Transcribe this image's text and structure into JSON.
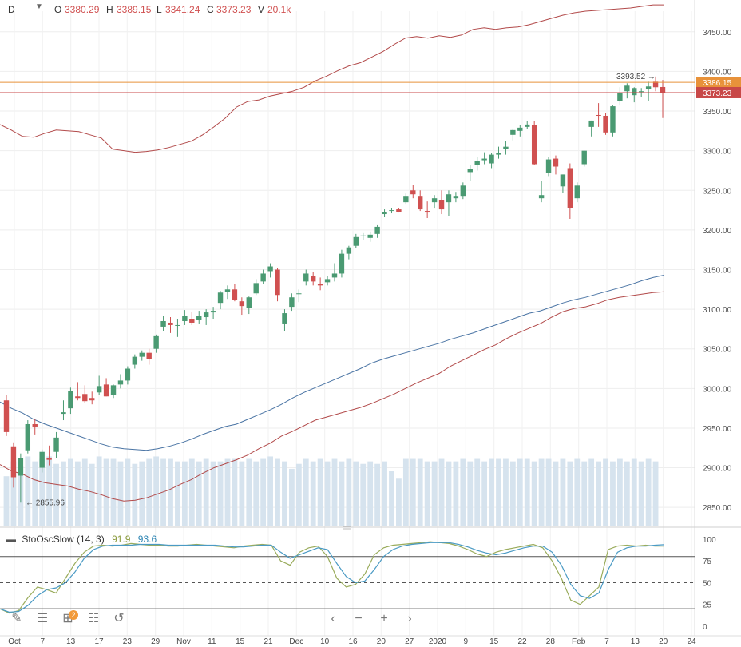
{
  "header": {
    "interval": "D",
    "o_label": "O",
    "o_value": "3380.29",
    "h_label": "H",
    "h_value": "3389.15",
    "l_label": "L",
    "l_value": "3341.24",
    "c_label": "C",
    "c_value": "3373.23",
    "v_label": "V",
    "v_value": "20.1k"
  },
  "indicator": {
    "name": "StoOscSlow (14, 3)",
    "k_value": "91.9",
    "d_value": "93.6",
    "k_color": "#9aac5c",
    "d_color": "#4a9ac4"
  },
  "colors": {
    "up": "#4a9a72",
    "down": "#d05050",
    "band": "#b24a4a",
    "mid": "#4a74a4",
    "volume": "#d6e3ee",
    "orange_line": "#e8923a",
    "red_line": "#c84848"
  },
  "annotations": {
    "high_label": "3393.52",
    "low_label": "2855.96",
    "orange_price": "3386.15",
    "red_price": "3373.23"
  },
  "chart_data": {
    "type": "candlestick",
    "x_tick_labels": [
      "Oct",
      "7",
      "13",
      "17",
      "23",
      "29",
      "Nov",
      "11",
      "15",
      "21",
      "Dec",
      "10",
      "16",
      "20",
      "27",
      "2020",
      "9",
      "15",
      "22",
      "28",
      "Feb",
      "7",
      "13",
      "20",
      "24"
    ],
    "y_tick_labels": [
      "3450.00",
      "3400.00",
      "3350.00",
      "3300.00",
      "3250.00",
      "3200.00",
      "3150.00",
      "3100.00",
      "3050.00",
      "3000.00",
      "2950.00",
      "2900.00",
      "2850.00"
    ],
    "ylim": [
      2827,
      3476
    ],
    "candles": [
      [
        2985,
        2992,
        2940,
        2945
      ],
      [
        2927,
        2932,
        2875,
        2888
      ],
      [
        2890,
        2918,
        2855.96,
        2912
      ],
      [
        2922,
        2960,
        2918,
        2955
      ],
      [
        2955,
        2962,
        2942,
        2952
      ],
      [
        2900,
        2923,
        2894,
        2920
      ],
      [
        2912,
        2928,
        2903,
        2910
      ],
      [
        2920,
        2945,
        2912,
        2938
      ],
      [
        2968,
        2985,
        2960,
        2970
      ],
      [
        2975,
        3001,
        2968,
        2997
      ],
      [
        2990,
        3008,
        2985,
        2988
      ],
      [
        2993,
        3004,
        2982,
        2984
      ],
      [
        2988,
        2996,
        2980,
        2985
      ],
      [
        2995,
        3016,
        2992,
        3003
      ],
      [
        3005,
        3013,
        2990,
        2990
      ],
      [
        2992,
        3005,
        2988,
        3004
      ],
      [
        3005,
        3018,
        3000,
        3010
      ],
      [
        3010,
        3028,
        3005,
        3025
      ],
      [
        3030,
        3043,
        3025,
        3040
      ],
      [
        3040,
        3048,
        3035,
        3045
      ],
      [
        3045,
        3050,
        3030,
        3037
      ],
      [
        3050,
        3068,
        3045,
        3066
      ],
      [
        3078,
        3092,
        3072,
        3085
      ],
      [
        3083,
        3090,
        3070,
        3080
      ],
      [
        3080,
        3088,
        3065,
        3080
      ],
      [
        3085,
        3099,
        3080,
        3092
      ],
      [
        3088,
        3097,
        3080,
        3083
      ],
      [
        3087,
        3098,
        3082,
        3092
      ],
      [
        3090,
        3100,
        3080,
        3096
      ],
      [
        3096,
        3103,
        3088,
        3098
      ],
      [
        3108,
        3123,
        3100,
        3121
      ],
      [
        3122,
        3130,
        3113,
        3125
      ],
      [
        3125,
        3132,
        3110,
        3112
      ],
      [
        3110,
        3115,
        3093,
        3104
      ],
      [
        3102,
        3116,
        3094,
        3115
      ],
      [
        3120,
        3138,
        3118,
        3133
      ],
      [
        3135,
        3150,
        3132,
        3145
      ],
      [
        3148,
        3158,
        3140,
        3154
      ],
      [
        3150,
        3152,
        3110,
        3118
      ],
      [
        3082,
        3100,
        3072,
        3095
      ],
      [
        3103,
        3120,
        3098,
        3115
      ],
      [
        3119,
        3125,
        3109,
        3120
      ],
      [
        3135,
        3150,
        3130,
        3145
      ],
      [
        3142,
        3147,
        3130,
        3135
      ],
      [
        3132,
        3140,
        3124,
        3130
      ],
      [
        3134,
        3142,
        3130,
        3138
      ],
      [
        3140,
        3158,
        3135,
        3145
      ],
      [
        3145,
        3175,
        3140,
        3170
      ],
      [
        3170,
        3180,
        3163,
        3178
      ],
      [
        3180,
        3195,
        3177,
        3191
      ],
      [
        3192,
        3196,
        3187,
        3193
      ],
      [
        3190,
        3198,
        3185,
        3194
      ],
      [
        3195,
        3206,
        3190,
        3204
      ],
      [
        3220,
        3226,
        3216,
        3223
      ],
      [
        3224,
        3228,
        3221,
        3225
      ],
      [
        3226,
        3228,
        3222,
        3223
      ],
      [
        3235,
        3246,
        3232,
        3242
      ],
      [
        3250,
        3257,
        3240,
        3245
      ],
      [
        3242,
        3250,
        3224,
        3226
      ],
      [
        3224,
        3236,
        3215,
        3222
      ],
      [
        3235,
        3244,
        3227,
        3240
      ],
      [
        3238,
        3250,
        3220,
        3226
      ],
      [
        3235,
        3250,
        3218,
        3245
      ],
      [
        3240,
        3248,
        3235,
        3242
      ],
      [
        3242,
        3260,
        3239,
        3256
      ],
      [
        3273,
        3282,
        3262,
        3277
      ],
      [
        3282,
        3292,
        3275,
        3287
      ],
      [
        3288,
        3298,
        3283,
        3290
      ],
      [
        3284,
        3297,
        3278,
        3295
      ],
      [
        3295,
        3305,
        3290,
        3297
      ],
      [
        3302,
        3312,
        3295,
        3305
      ],
      [
        3320,
        3328,
        3313,
        3326
      ],
      [
        3325,
        3332,
        3318,
        3329
      ],
      [
        3330,
        3337,
        3327,
        3333
      ],
      [
        3332,
        3337,
        3282,
        3283
      ],
      [
        3240,
        3262,
        3235,
        3244
      ],
      [
        3272,
        3292,
        3268,
        3289
      ],
      [
        3290,
        3294,
        3270,
        3280
      ],
      [
        3255,
        3270,
        3247,
        3270
      ],
      [
        3278,
        3284,
        3214,
        3228
      ],
      [
        3240,
        3260,
        3235,
        3256
      ],
      [
        3283,
        3300,
        3280,
        3300
      ],
      [
        3330,
        3338,
        3318,
        3338
      ],
      [
        3345,
        3360,
        3330,
        3344
      ],
      [
        3344,
        3348,
        3320,
        3323
      ],
      [
        3323,
        3357,
        3318,
        3356
      ],
      [
        3363,
        3380,
        3357,
        3373
      ],
      [
        3375,
        3385,
        3366,
        3382
      ],
      [
        3370,
        3380,
        3361,
        3379
      ],
      [
        3374,
        3379,
        3368,
        3375
      ],
      [
        3378,
        3387,
        3363,
        3381
      ],
      [
        3387,
        3393.52,
        3375,
        3380
      ],
      [
        3380.29,
        3389.15,
        3341.24,
        3373.23
      ]
    ],
    "upper_band": [
      3333,
      3326,
      3318,
      3317,
      3322,
      3326,
      3325,
      3324,
      3320,
      3316,
      3302,
      3300,
      3298,
      3299,
      3301,
      3304,
      3308,
      3312,
      3320,
      3330,
      3341,
      3355,
      3362,
      3364,
      3369,
      3372,
      3375,
      3380,
      3388,
      3394,
      3401,
      3407,
      3411,
      3418,
      3425,
      3434,
      3442,
      3444,
      3442,
      3445,
      3443,
      3446,
      3453,
      3455,
      3453,
      3455,
      3456,
      3459,
      3463,
      3467,
      3471,
      3474,
      3476,
      3477,
      3478,
      3479,
      3480,
      3482,
      3484,
      3484
    ],
    "middle_band": [
      2983,
      2975,
      2969,
      2961,
      2955,
      2950,
      2945,
      2940,
      2935,
      2930,
      2926,
      2924,
      2923,
      2922,
      2924,
      2927,
      2931,
      2936,
      2942,
      2947,
      2952,
      2955,
      2961,
      2967,
      2973,
      2980,
      2988,
      2995,
      3001,
      3007,
      3013,
      3019,
      3025,
      3032,
      3037,
      3041,
      3045,
      3049,
      3053,
      3057,
      3062,
      3066,
      3070,
      3075,
      3080,
      3085,
      3090,
      3095,
      3098,
      3103,
      3108,
      3112,
      3115,
      3119,
      3123,
      3127,
      3131,
      3136,
      3140,
      3143
    ],
    "lower_band": [
      2904,
      2896,
      2892,
      2885,
      2881,
      2879,
      2877,
      2873,
      2870,
      2866,
      2861,
      2858,
      2859,
      2862,
      2867,
      2872,
      2879,
      2885,
      2893,
      2900,
      2905,
      2910,
      2916,
      2924,
      2931,
      2940,
      2946,
      2953,
      2960,
      2964,
      2968,
      2972,
      2976,
      2981,
      2987,
      2993,
      3000,
      3007,
      3013,
      3019,
      3028,
      3035,
      3042,
      3049,
      3055,
      3063,
      3070,
      3076,
      3082,
      3090,
      3097,
      3101,
      3103,
      3107,
      3112,
      3115,
      3117,
      3119,
      3121,
      3122
    ],
    "volume": [
      0.2,
      0.26,
      0.24,
      0.28,
      0.26,
      0.27,
      0.28,
      0.25,
      0.26,
      0.27,
      0.26,
      0.27,
      0.25,
      0.28,
      0.27,
      0.27,
      0.26,
      0.27,
      0.25,
      0.26,
      0.27,
      0.28,
      0.27,
      0.27,
      0.26,
      0.26,
      0.27,
      0.26,
      0.27,
      0.26,
      0.26,
      0.27,
      0.27,
      0.26,
      0.27,
      0.26,
      0.27,
      0.28,
      0.27,
      0.26,
      0.23,
      0.25,
      0.27,
      0.26,
      0.27,
      0.26,
      0.27,
      0.26,
      0.27,
      0.26,
      0.25,
      0.26,
      0.25,
      0.26,
      0.22,
      0.19,
      0.27,
      0.27,
      0.27,
      0.26,
      0.26,
      0.27,
      0.26,
      0.26,
      0.27,
      0.26,
      0.27,
      0.26,
      0.27,
      0.27,
      0.27,
      0.26,
      0.27,
      0.27,
      0.26,
      0.27,
      0.27,
      0.26,
      0.27,
      0.26,
      0.27,
      0.26,
      0.27,
      0.26,
      0.27,
      0.26,
      0.27,
      0.26,
      0.27,
      0.26,
      0.27,
      0.26
    ],
    "stochastic": {
      "ylim": [
        0,
        110
      ],
      "y_tick_labels": [
        "100",
        "75",
        "50",
        "25",
        "0"
      ],
      "k": [
        20,
        15,
        18,
        33,
        45,
        42,
        38,
        55,
        72,
        85,
        92,
        93,
        92,
        93,
        95,
        94,
        93,
        93,
        92,
        92,
        93,
        94,
        93,
        92,
        91,
        90,
        92,
        93,
        94,
        93,
        75,
        70,
        85,
        90,
        92,
        80,
        55,
        45,
        48,
        60,
        82,
        90,
        93,
        94,
        95,
        96,
        97,
        96,
        95,
        92,
        88,
        83,
        80,
        85,
        88,
        90,
        92,
        94,
        90,
        75,
        55,
        30,
        25,
        35,
        45,
        88,
        92,
        93,
        92,
        93,
        92,
        91.9
      ],
      "d": [
        20,
        16,
        17,
        24,
        35,
        42,
        44,
        50,
        62,
        78,
        88,
        92,
        93,
        93,
        93,
        94,
        94,
        94,
        93,
        93,
        93,
        93,
        93,
        93,
        92,
        91,
        91,
        92,
        93,
        93,
        85,
        78,
        82,
        86,
        90,
        88,
        72,
        57,
        50,
        52,
        65,
        80,
        88,
        92,
        94,
        95,
        96,
        96,
        96,
        94,
        91,
        87,
        84,
        82,
        84,
        87,
        90,
        92,
        92,
        85,
        70,
        48,
        35,
        32,
        38,
        65,
        85,
        90,
        92,
        92,
        93,
        93.6
      ],
      "upper_level": 80,
      "lower_level": 20,
      "middle_level": 50
    }
  }
}
